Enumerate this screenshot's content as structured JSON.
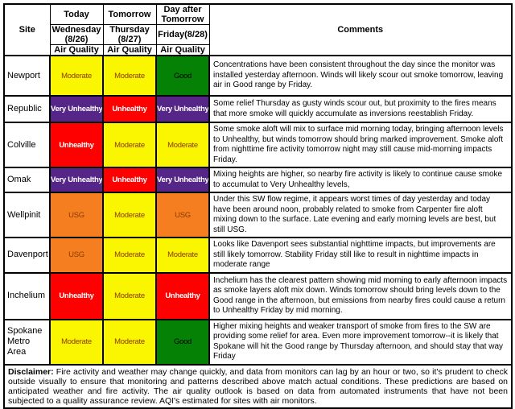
{
  "header": {
    "site": "Site",
    "comments": "Comments",
    "day_columns": [
      {
        "day": "Today",
        "date": "Wednesday (8/26)",
        "sub": "Air Quality"
      },
      {
        "day": "Tomorrow",
        "date": "Thursday (8/27)",
        "sub": "Air Quality"
      },
      {
        "day": "Day after Tomorrow",
        "date": "Friday(8/28)",
        "sub": "Air Quality"
      }
    ]
  },
  "aqi_palette": {
    "good": "#058205",
    "moderate": "#faf500",
    "usg": "#f57e20",
    "unhealthy": "#fe0000",
    "very_unhealthy": "#552687",
    "dark_label_text": "#8b3a00",
    "light_label_text": "#ffffff"
  },
  "rows": [
    {
      "site": "Newport",
      "cells": [
        {
          "label": "Moderate",
          "bg": "#faf500",
          "fg": "#8b3a00",
          "bold": false
        },
        {
          "label": "Moderate",
          "bg": "#faf500",
          "fg": "#8b3a00",
          "bold": false
        },
        {
          "label": "Good",
          "bg": "#058205",
          "fg": "#000000",
          "bold": false
        }
      ],
      "comment": "Concentrations have been consistent throughout the day since the monitor was installed yesterday afternoon.  Winds will likely scour out smoke tomorrow, leaving air in Good range by Friday."
    },
    {
      "site": "Republic",
      "cells": [
        {
          "label": "Very Unhealthy",
          "bg": "#552687",
          "fg": "#ffffff",
          "bold": true
        },
        {
          "label": "Unhealthy",
          "bg": "#fe0000",
          "fg": "#ffffff",
          "bold": true
        },
        {
          "label": "Very Unhealthy",
          "bg": "#552687",
          "fg": "#ffffff",
          "bold": true
        }
      ],
      "comment": "Some relief Thursday as gusty winds scour out, but proximity to the fires means that more smoke will quickly accumulate  as inversions reestablish Friday."
    },
    {
      "site": "Colville",
      "cells": [
        {
          "label": "Unhealthy",
          "bg": "#fe0000",
          "fg": "#ffffff",
          "bold": true
        },
        {
          "label": "Moderate",
          "bg": "#faf500",
          "fg": "#8b3a00",
          "bold": false
        },
        {
          "label": "Moderate",
          "bg": "#faf500",
          "fg": "#8b3a00",
          "bold": false
        }
      ],
      "comment": "Some smoke aloft will mix to surface mid morning today, bringing afternoon levels to Unhealthy, but winds tomorrow should bring marked improvement. Smoke aloft from nighttime fire activity tomorrow night may still cause mid-morning impacts Friday."
    },
    {
      "site": "Omak",
      "cells": [
        {
          "label": "Very Unhealthy",
          "bg": "#552687",
          "fg": "#ffffff",
          "bold": true
        },
        {
          "label": "Unhealthy",
          "bg": "#fe0000",
          "fg": "#ffffff",
          "bold": true
        },
        {
          "label": "Very Unhealthy",
          "bg": "#552687",
          "fg": "#ffffff",
          "bold": true
        }
      ],
      "comment": "Mixing heights are higher, so nearby fire activity is likely to continue cause smoke to accumulat to Very Unhealthy levels,"
    },
    {
      "site": "Wellpinit",
      "cells": [
        {
          "label": "USG",
          "bg": "#f57e20",
          "fg": "#8b3a00",
          "bold": false
        },
        {
          "label": "Moderate",
          "bg": "#faf500",
          "fg": "#8b3a00",
          "bold": false
        },
        {
          "label": "USG",
          "bg": "#f57e20",
          "fg": "#8b3a00",
          "bold": false
        }
      ],
      "comment": "Under this SW flow regime, it appears worst times of day yesterday and today have been around noon, probably related to smoke from Carpenter fire aloft mixing down to the surface. Late evening and early morning levels are best, but still USG."
    },
    {
      "site": "Davenport",
      "cells": [
        {
          "label": "USG",
          "bg": "#f57e20",
          "fg": "#8b3a00",
          "bold": false
        },
        {
          "label": "Moderate",
          "bg": "#faf500",
          "fg": "#8b3a00",
          "bold": false
        },
        {
          "label": "Moderate",
          "bg": "#faf500",
          "fg": "#8b3a00",
          "bold": false
        }
      ],
      "comment": "Looks like Davenport sees substantial nighttime impacts, but improvements are still likely tomorrow. Stability Friday still like to result in nighttime impacts in moderate range"
    },
    {
      "site": "Inchelium",
      "cells": [
        {
          "label": "Unhealthy",
          "bg": "#fe0000",
          "fg": "#ffffff",
          "bold": true
        },
        {
          "label": "Moderate",
          "bg": "#faf500",
          "fg": "#8b3a00",
          "bold": false
        },
        {
          "label": "Unhealthy",
          "bg": "#fe0000",
          "fg": "#ffffff",
          "bold": true
        }
      ],
      "comment": "Inchelium has the clearest pattern showing mid morning to early afternoon impacts as smoke layers aloft mix down.  Winds tomorrow should bring levels down to the Good range in the afternoon, but emissions from nearby fires could cause a return to Unhealthy Friday by mid morning."
    },
    {
      "site": "Spokane Metro Area",
      "cells": [
        {
          "label": "Moderate",
          "bg": "#faf500",
          "fg": "#8b3a00",
          "bold": false
        },
        {
          "label": "Moderate",
          "bg": "#faf500",
          "fg": "#8b3a00",
          "bold": false
        },
        {
          "label": "Good",
          "bg": "#058205",
          "fg": "#000000",
          "bold": false
        }
      ],
      "comment": "Higher mixing heights and weaker transport of smoke from fires to the SW are providing some relief for area.  Even more improvement tomorrow--it is likely that Spokane will hit the Good range by Thursday afternoon, and should stay that way Friday"
    }
  ],
  "disclaimer": {
    "label": "Disclaimer:",
    "text": " Fire activity and weather may change quickly, and data from monitors can lag by an hour or two, so it's prudent to check outside visually to ensure that monitoring and patterns described above match actual conditions. These predictions are based on anticipated weather and fire activity.  The air quality outlook is based on data from automated instruments that have not been subjected to a quality assurance review. AQI's estimated for sites with air monitors."
  }
}
